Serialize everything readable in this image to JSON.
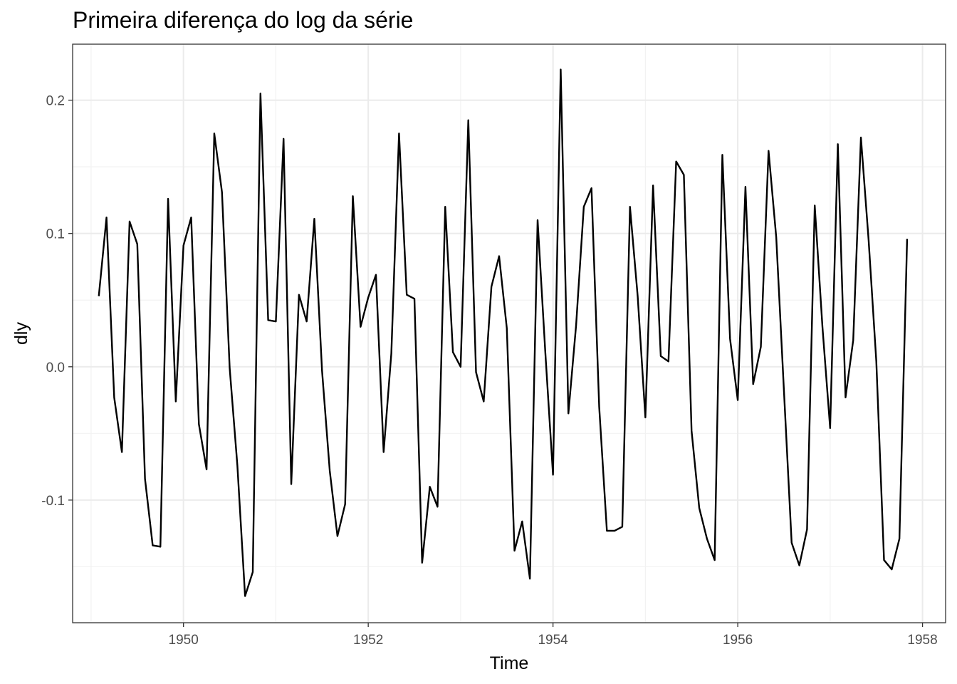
{
  "chart_data": {
    "type": "line",
    "title": "Primeira diferença do log da série",
    "xlabel": "Time",
    "ylabel": "dly",
    "xlim": [
      1948.8,
      1958.25
    ],
    "ylim": [
      -0.192,
      0.242
    ],
    "x_ticks": [
      1950,
      1952,
      1954,
      1956,
      1958
    ],
    "x_tick_labels": [
      "1950",
      "1952",
      "1954",
      "1956",
      "1958"
    ],
    "x_minor_ticks": [
      1949,
      1951,
      1953,
      1955,
      1957
    ],
    "y_ticks": [
      -0.1,
      0.0,
      0.1,
      0.2
    ],
    "y_tick_labels": [
      "-0.1",
      "0.0",
      "0.1",
      "0.2"
    ],
    "y_minor_ticks": [
      -0.15,
      -0.05,
      0.05,
      0.15
    ],
    "grid": true,
    "start": 1949.0833,
    "frequency": 12,
    "series": [
      {
        "values": [
          0.053,
          0.112,
          -0.023,
          -0.064,
          0.109,
          0.092,
          -0.084,
          -0.134,
          -0.135,
          0.126,
          -0.026,
          0.091,
          0.112,
          -0.043,
          -0.077,
          0.175,
          0.131,
          -0.001,
          -0.074,
          -0.172,
          -0.154,
          0.205,
          0.035,
          0.034,
          0.171,
          -0.088,
          0.054,
          0.034,
          0.111,
          -0.003,
          -0.078,
          -0.127,
          -0.103,
          0.128,
          0.03,
          0.052,
          0.069,
          -0.064,
          0.01,
          0.175,
          0.054,
          0.051,
          -0.147,
          -0.09,
          -0.105,
          0.12,
          0.011,
          0.0,
          0.185,
          -0.004,
          -0.026,
          0.06,
          0.083,
          0.029,
          -0.138,
          -0.116,
          -0.159,
          0.11,
          0.011,
          -0.081,
          0.223,
          -0.035,
          0.031,
          0.12,
          0.134,
          -0.03,
          -0.123,
          -0.123,
          -0.12,
          0.12,
          0.053,
          -0.038,
          0.136,
          0.008,
          0.004,
          0.154,
          0.144,
          -0.048,
          -0.106,
          -0.129,
          -0.145,
          0.159,
          0.021,
          -0.025,
          0.135,
          -0.013,
          0.015,
          0.162,
          0.097,
          -0.018,
          -0.132,
          -0.149,
          -0.122,
          0.121,
          0.03,
          -0.046,
          0.167,
          -0.023,
          0.02,
          0.172,
          0.095,
          0.004,
          -0.145,
          -0.152,
          -0.129,
          0.096
        ]
      }
    ]
  }
}
